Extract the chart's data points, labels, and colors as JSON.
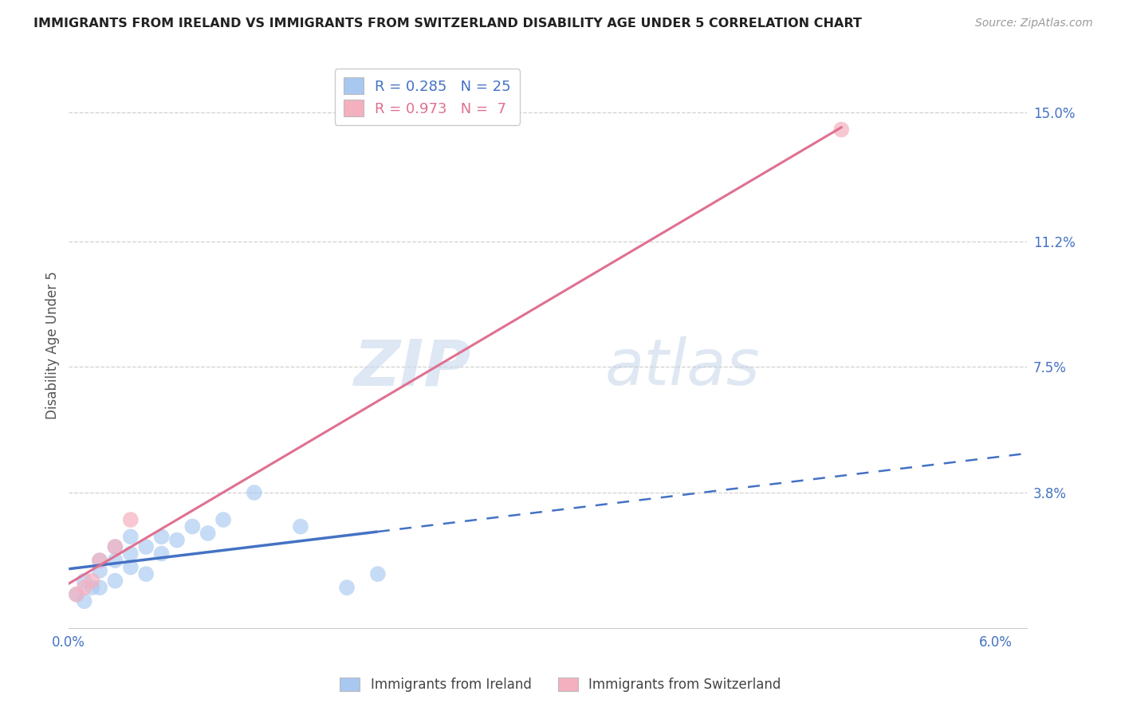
{
  "title": "IMMIGRANTS FROM IRELAND VS IMMIGRANTS FROM SWITZERLAND DISABILITY AGE UNDER 5 CORRELATION CHART",
  "source": "Source: ZipAtlas.com",
  "ylabel": "Disability Age Under 5",
  "xlim": [
    0.0,
    0.062
  ],
  "ylim": [
    -0.002,
    0.165
  ],
  "xticks": [
    0.0,
    0.01,
    0.02,
    0.03,
    0.04,
    0.05,
    0.06
  ],
  "xticklabels": [
    "0.0%",
    "",
    "",
    "",
    "",
    "",
    "6.0%"
  ],
  "yticks_right": [
    0.038,
    0.075,
    0.112,
    0.15
  ],
  "ytick_right_labels": [
    "3.8%",
    "7.5%",
    "11.2%",
    "15.0%"
  ],
  "ireland_R": 0.285,
  "ireland_N": 25,
  "switzerland_R": 0.973,
  "switzerland_N": 7,
  "ireland_color": "#a8c8f0",
  "switzerland_color": "#f5b0c0",
  "ireland_line_color": "#4472c4",
  "switzerland_line_color": "#e07090",
  "watermark_zip": "ZIP",
  "watermark_atlas": "atlas",
  "ireland_x": [
    0.0005,
    0.001,
    0.001,
    0.0015,
    0.002,
    0.002,
    0.002,
    0.003,
    0.003,
    0.003,
    0.004,
    0.004,
    0.004,
    0.005,
    0.005,
    0.006,
    0.006,
    0.007,
    0.008,
    0.009,
    0.01,
    0.012,
    0.015,
    0.018,
    0.02
  ],
  "ireland_y": [
    0.008,
    0.006,
    0.012,
    0.01,
    0.01,
    0.015,
    0.018,
    0.012,
    0.018,
    0.022,
    0.016,
    0.02,
    0.025,
    0.014,
    0.022,
    0.02,
    0.025,
    0.024,
    0.028,
    0.026,
    0.03,
    0.038,
    0.028,
    0.01,
    0.014
  ],
  "switzerland_x": [
    0.0005,
    0.001,
    0.0015,
    0.002,
    0.003,
    0.004,
    0.05
  ],
  "switzerland_y": [
    0.008,
    0.01,
    0.012,
    0.018,
    0.022,
    0.03,
    0.145
  ],
  "ireland_scatter_size": 200,
  "switzerland_scatter_size": 200,
  "ireland_line_solid_end": 0.02,
  "ireland_line_dash_end": 0.062
}
